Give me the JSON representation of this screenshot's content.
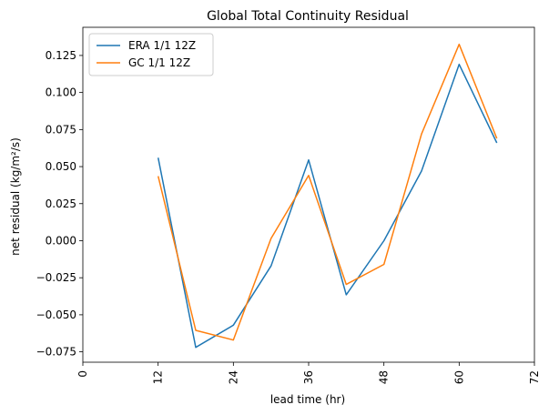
{
  "chart_data": {
    "type": "line",
    "title": "Global Total Continuity Residual",
    "xlabel": "lead time (hr)",
    "ylabel": "net residual (kg/m²/s)",
    "xlim": [
      0,
      72
    ],
    "ylim": [
      -0.082,
      0.144
    ],
    "xticks": [
      0,
      12,
      24,
      36,
      48,
      60,
      72
    ],
    "xtick_labels": [
      "0",
      "12",
      "24",
      "36",
      "48",
      "60",
      "72"
    ],
    "yticks": [
      -0.075,
      -0.05,
      -0.025,
      0.0,
      0.025,
      0.05,
      0.075,
      0.1,
      0.125
    ],
    "ytick_labels": [
      "−0.075",
      "−0.050",
      "−0.025",
      "0.000",
      "0.025",
      "0.050",
      "0.075",
      "0.100",
      "0.125"
    ],
    "x": [
      12,
      18,
      24,
      30,
      36,
      42,
      48,
      54,
      60,
      66
    ],
    "grid": false,
    "legend_position": "upper left",
    "series": [
      {
        "name": "ERA 1/1 12Z",
        "color": "#1f77b4",
        "values": [
          0.056,
          -0.072,
          -0.057,
          -0.017,
          0.0545,
          -0.0365,
          0.0,
          0.047,
          0.119,
          0.066
        ]
      },
      {
        "name": "GC 1/1 12Z",
        "color": "#ff7f0e",
        "values": [
          0.0435,
          -0.0605,
          -0.067,
          0.0015,
          0.044,
          -0.0295,
          -0.016,
          0.072,
          0.1325,
          0.069
        ]
      }
    ]
  }
}
